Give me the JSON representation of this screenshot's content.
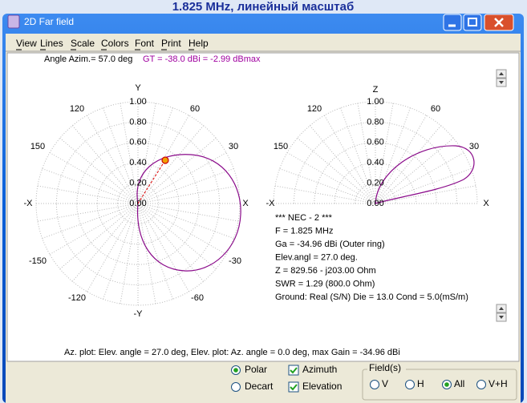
{
  "screen_title": "1.825 MHz, линейный масштаб",
  "window": {
    "title": "2D Far field"
  },
  "menu": [
    "View",
    "Lines",
    "Scale",
    "Colors",
    "Font",
    "Print",
    "Help"
  ],
  "status": {
    "angle": "Angle Azim.=   57.0 deg",
    "gain": "GT =  -38.0 dBi =  -2.99 dBmax"
  },
  "azimuth_plot": {
    "axis_labels": [
      "Y",
      "120",
      "60",
      "150",
      "30",
      "-X",
      "X",
      "-150",
      "-30",
      "-120",
      "-60",
      "-Y"
    ],
    "ring_labels": [
      "1.00",
      "0.80",
      "0.60",
      "0.40",
      "0.20",
      "0.00"
    ]
  },
  "elevation_plot": {
    "axis_labels": [
      "Z",
      "120",
      "60",
      "150",
      "30",
      "-X",
      "X"
    ],
    "ring_labels": [
      "1.00",
      "0.80",
      "0.60",
      "0.40",
      "0.20",
      "0.00"
    ]
  },
  "info": [
    "*** NEC - 2 ***",
    "F = 1.825 MHz",
    "Ga = -34.96 dBi (Outer ring)",
    "Elev.angl = 27.0 deg.",
    "Z = 829.56 - j203.00 Ohm",
    "SWR = 1.29 (800.0 Ohm)",
    "Ground: Real (S/N) Die = 13.0  Cond = 5.0(mS/m)"
  ],
  "footer": "Az. plot: Elev. angle = 27.0 deg,  Elev. plot: Az. angle = 0.0 deg, max Gain = -34.96 dBi",
  "controls": {
    "plot_mode": [
      "Polar",
      "Decart"
    ],
    "plots": [
      "Azimuth",
      "Elevation"
    ],
    "fields_title": "Field(s)",
    "fields": [
      "V",
      "H",
      "All",
      "V+H"
    ]
  }
}
